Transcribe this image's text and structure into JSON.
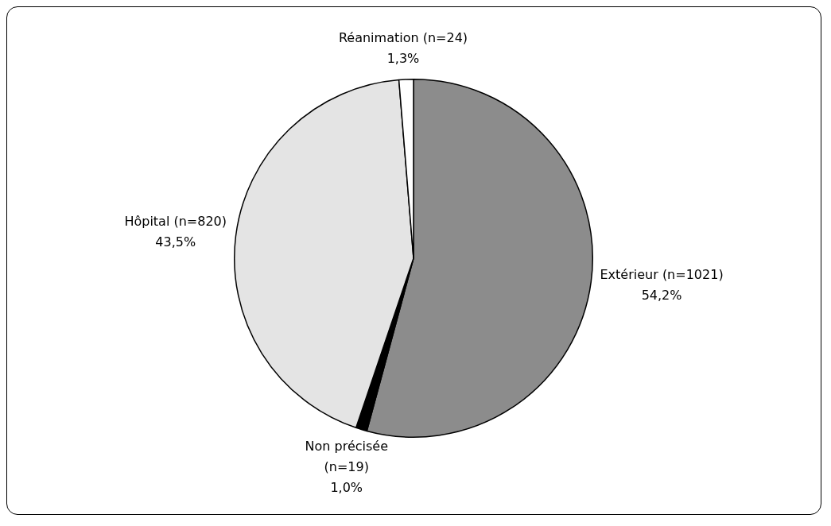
{
  "chart_data": {
    "type": "pie",
    "categories": [
      "Extérieur (n=1021)",
      "Non précisée (n=19)",
      "Hôpital (n=820)",
      "Réanimation (n=24)"
    ],
    "values": [
      54.2,
      1.0,
      43.5,
      1.3
    ],
    "value_labels": [
      "54,2%",
      "1,0%",
      "43,5%",
      "1,3%"
    ],
    "colors": [
      "#8c8c8c",
      "#000000",
      "#e4e4e4",
      "#ffffff"
    ],
    "legend": false
  }
}
